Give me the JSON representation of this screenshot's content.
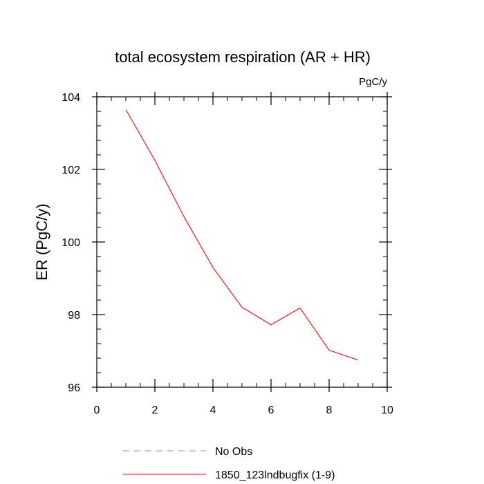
{
  "chart_data": {
    "type": "line",
    "title": "total ecosystem respiration (AR + HR)",
    "units": "PgC/y",
    "xlabel": "",
    "ylabel": "ER  (PgC/y)",
    "xlim": [
      0,
      10
    ],
    "ylim": [
      96,
      104
    ],
    "xticks": [
      0,
      2,
      4,
      6,
      8,
      10
    ],
    "yticks": [
      96,
      98,
      100,
      102,
      104
    ],
    "xtick_labels": [
      "0",
      "2",
      "4",
      "6",
      "8",
      "10"
    ],
    "ytick_labels": [
      "96",
      "98",
      "100",
      "102",
      "104"
    ],
    "grid": false,
    "series": [
      {
        "name": "1850_123lndbugfix (1-9)",
        "color": "#ff0000",
        "style": "solid",
        "x": [
          1,
          2,
          3,
          4,
          5,
          6,
          7,
          8,
          9
        ],
        "y": [
          103.65,
          102.25,
          100.7,
          99.3,
          98.2,
          97.72,
          98.18,
          97.02,
          96.75
        ]
      }
    ],
    "legend": [
      {
        "label": "No Obs",
        "color": "#8888ff",
        "style": "dashed"
      },
      {
        "label": "1850_123lndbugfix (1-9)",
        "color": "#ff0000",
        "style": "solid"
      }
    ],
    "legend_position": "bottom"
  }
}
